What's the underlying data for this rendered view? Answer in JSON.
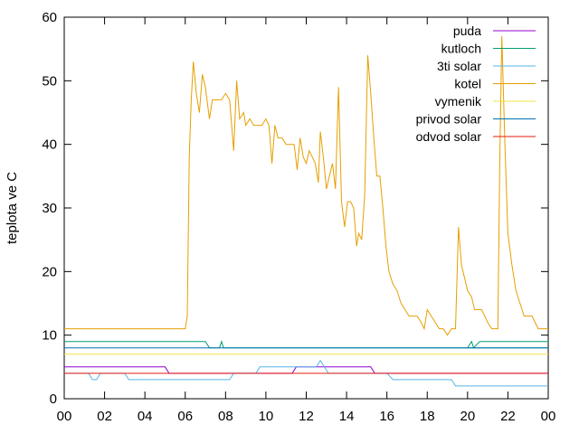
{
  "chart_data": {
    "type": "line",
    "title": "",
    "xlabel": "",
    "ylabel": "teplota ve C",
    "xlim": [
      0,
      24
    ],
    "ylim": [
      0,
      60
    ],
    "x_tick_labels": [
      "00",
      "02",
      "04",
      "06",
      "08",
      "10",
      "12",
      "14",
      "16",
      "18",
      "20",
      "22",
      "00"
    ],
    "y_ticks": [
      0,
      10,
      20,
      30,
      40,
      50,
      60
    ],
    "grid": false,
    "legend_position": "top-right",
    "series": [
      {
        "name": "puda",
        "color": "#9400d3",
        "points": [
          [
            0,
            5
          ],
          [
            5.0,
            5
          ],
          [
            5.2,
            4
          ],
          [
            11.3,
            4
          ],
          [
            11.5,
            5
          ],
          [
            13.2,
            5
          ],
          [
            13.4,
            5
          ],
          [
            15.2,
            5
          ],
          [
            15.4,
            4
          ],
          [
            24,
            4
          ]
        ]
      },
      {
        "name": "kutloch",
        "color": "#009e73",
        "points": [
          [
            0,
            9
          ],
          [
            7.0,
            9
          ],
          [
            7.2,
            8
          ],
          [
            7.7,
            8
          ],
          [
            7.8,
            9
          ],
          [
            7.9,
            8
          ],
          [
            24,
            8
          ],
          [
            20.0,
            8
          ],
          [
            20.2,
            9
          ],
          [
            20.3,
            8
          ],
          [
            20.6,
            9
          ],
          [
            24,
            9
          ]
        ]
      },
      {
        "name": "3ti solar",
        "color": "#56b4e9",
        "points": [
          [
            0,
            4
          ],
          [
            1.2,
            4
          ],
          [
            1.4,
            3
          ],
          [
            1.6,
            3
          ],
          [
            1.8,
            4
          ],
          [
            3.0,
            4
          ],
          [
            3.2,
            3
          ],
          [
            8.2,
            3
          ],
          [
            8.4,
            4
          ],
          [
            9.5,
            4
          ],
          [
            9.7,
            5
          ],
          [
            12.5,
            5
          ],
          [
            12.7,
            6
          ],
          [
            12.9,
            5
          ],
          [
            13.1,
            4
          ],
          [
            15.0,
            4
          ],
          [
            15.2,
            4
          ],
          [
            16.0,
            4
          ],
          [
            16.3,
            3
          ],
          [
            19.2,
            3
          ],
          [
            19.4,
            2
          ],
          [
            24,
            2
          ]
        ]
      },
      {
        "name": "kotel",
        "color": "#e69f00",
        "points": [
          [
            0,
            11
          ],
          [
            6.0,
            11
          ],
          [
            6.1,
            13
          ],
          [
            6.2,
            38
          ],
          [
            6.3,
            47
          ],
          [
            6.4,
            53
          ],
          [
            6.55,
            48
          ],
          [
            6.7,
            45
          ],
          [
            6.85,
            51
          ],
          [
            7.0,
            49
          ],
          [
            7.2,
            44
          ],
          [
            7.35,
            47
          ],
          [
            7.5,
            47
          ],
          [
            7.8,
            47
          ],
          [
            8.0,
            48
          ],
          [
            8.2,
            47
          ],
          [
            8.4,
            39
          ],
          [
            8.55,
            50
          ],
          [
            8.7,
            44
          ],
          [
            8.9,
            45
          ],
          [
            9.0,
            43
          ],
          [
            9.2,
            44
          ],
          [
            9.4,
            43
          ],
          [
            9.6,
            43
          ],
          [
            9.8,
            43
          ],
          [
            10.0,
            44
          ],
          [
            10.15,
            43
          ],
          [
            10.3,
            37
          ],
          [
            10.45,
            43
          ],
          [
            10.6,
            41
          ],
          [
            10.8,
            41
          ],
          [
            11.0,
            40
          ],
          [
            11.2,
            40
          ],
          [
            11.4,
            40
          ],
          [
            11.55,
            36
          ],
          [
            11.7,
            41
          ],
          [
            11.85,
            38
          ],
          [
            12.0,
            37
          ],
          [
            12.15,
            39
          ],
          [
            12.3,
            38
          ],
          [
            12.45,
            37
          ],
          [
            12.6,
            34
          ],
          [
            12.7,
            42
          ],
          [
            12.85,
            38
          ],
          [
            13.0,
            33
          ],
          [
            13.15,
            35
          ],
          [
            13.3,
            37
          ],
          [
            13.45,
            33
          ],
          [
            13.6,
            49
          ],
          [
            13.75,
            31
          ],
          [
            13.9,
            27
          ],
          [
            14.05,
            31
          ],
          [
            14.2,
            31
          ],
          [
            14.35,
            30
          ],
          [
            14.5,
            24
          ],
          [
            14.6,
            26
          ],
          [
            14.75,
            25
          ],
          [
            14.9,
            32
          ],
          [
            15.05,
            54
          ],
          [
            15.2,
            48
          ],
          [
            15.35,
            41
          ],
          [
            15.5,
            35
          ],
          [
            15.65,
            35
          ],
          [
            15.8,
            30
          ],
          [
            15.95,
            24
          ],
          [
            16.1,
            20
          ],
          [
            16.3,
            18
          ],
          [
            16.5,
            17
          ],
          [
            16.7,
            15
          ],
          [
            16.9,
            14
          ],
          [
            17.1,
            13
          ],
          [
            17.3,
            13
          ],
          [
            17.5,
            13
          ],
          [
            17.7,
            12
          ],
          [
            17.85,
            11
          ],
          [
            18.0,
            14
          ],
          [
            18.2,
            13
          ],
          [
            18.4,
            12
          ],
          [
            18.6,
            11
          ],
          [
            18.8,
            11
          ],
          [
            19.0,
            10
          ],
          [
            19.2,
            11
          ],
          [
            19.4,
            11
          ],
          [
            19.55,
            27
          ],
          [
            19.7,
            21
          ],
          [
            19.85,
            19
          ],
          [
            20.0,
            17
          ],
          [
            20.2,
            16
          ],
          [
            20.35,
            14
          ],
          [
            20.5,
            14
          ],
          [
            20.7,
            14
          ],
          [
            20.85,
            13
          ],
          [
            21.0,
            12
          ],
          [
            21.2,
            11
          ],
          [
            21.5,
            11
          ],
          [
            21.6,
            38
          ],
          [
            21.7,
            57
          ],
          [
            21.85,
            40
          ],
          [
            22.0,
            26
          ],
          [
            22.2,
            21
          ],
          [
            22.4,
            17
          ],
          [
            22.6,
            15
          ],
          [
            22.8,
            13
          ],
          [
            23.0,
            13
          ],
          [
            23.2,
            13
          ],
          [
            23.35,
            12
          ],
          [
            23.5,
            11
          ],
          [
            24,
            11
          ]
        ]
      },
      {
        "name": "vymenik",
        "color": "#f0e442",
        "points": [
          [
            0,
            7
          ],
          [
            24,
            7
          ]
        ]
      },
      {
        "name": "privod solar",
        "color": "#0072b2",
        "points": [
          [
            0,
            8
          ],
          [
            9.9,
            8
          ],
          [
            10.1,
            8
          ],
          [
            24,
            8
          ]
        ]
      },
      {
        "name": "odvod solar",
        "color": "#e51e10",
        "points": [
          [
            0,
            4
          ],
          [
            24,
            4
          ]
        ]
      }
    ]
  }
}
